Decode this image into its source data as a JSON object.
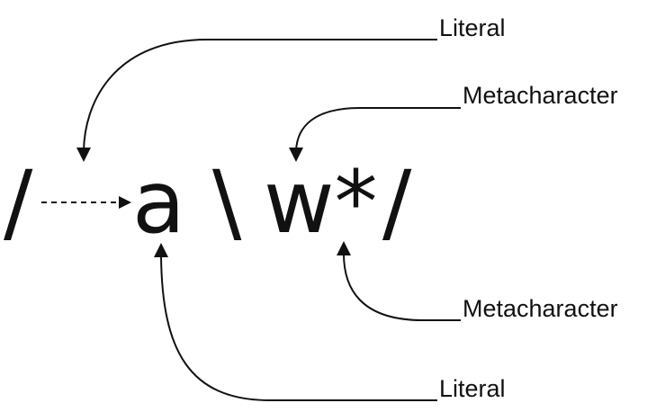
{
  "diagram": {
    "expression": {
      "open_slash": "/",
      "char_a": "a",
      "backslash": "\\",
      "char_w_star": "w*",
      "close_slash": "/"
    },
    "labels": {
      "top_literal": "Literal",
      "top_metacharacter": "Metacharacter",
      "bottom_metacharacter": "Metacharacter",
      "bottom_literal": "Literal"
    }
  }
}
